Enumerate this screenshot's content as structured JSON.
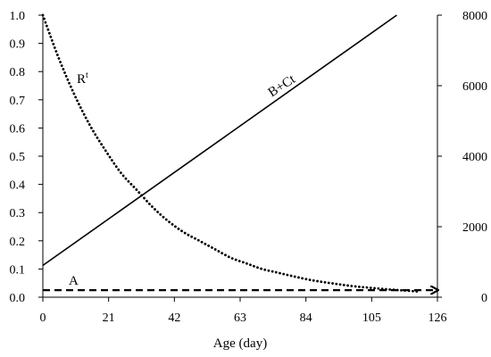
{
  "chart_data": {
    "type": "line",
    "xlabel": "Age (day)",
    "x_ticks": [
      "0",
      "21",
      "42",
      "63",
      "84",
      "105",
      "126"
    ],
    "xlim": [
      0,
      126
    ],
    "y_left_ticks": [
      "0.0",
      "0.1",
      "0.2",
      "0.3",
      "0.4",
      "0.5",
      "0.6",
      "0.7",
      "0.8",
      "0.9",
      "1.0"
    ],
    "ylim_left": [
      0,
      1
    ],
    "y_right_ticks": [
      "0",
      "2000",
      "4000",
      "6000",
      "8000"
    ],
    "ylim_right": [
      0,
      8000
    ],
    "grid": false,
    "series": [
      {
        "name": "R",
        "name_sup": "t",
        "axis": "left",
        "style": "dotted",
        "color": "#000000",
        "x": [
          0,
          5,
          10,
          15,
          20,
          25,
          30,
          35,
          40,
          45,
          50,
          55,
          60,
          65,
          70,
          75,
          80,
          85,
          90,
          95,
          100,
          105,
          110,
          115,
          120
        ],
        "y": [
          1.0,
          0.85,
          0.72,
          0.61,
          0.52,
          0.44,
          0.38,
          0.32,
          0.27,
          0.23,
          0.2,
          0.17,
          0.14,
          0.12,
          0.1,
          0.087,
          0.074,
          0.062,
          0.053,
          0.045,
          0.038,
          0.033,
          0.028,
          0.024,
          0.02
        ]
      },
      {
        "name": "B+Ct",
        "axis": "right",
        "style": "solid",
        "color": "#000000",
        "x": [
          0,
          113
        ],
        "y": [
          900,
          8000
        ]
      },
      {
        "name": "A",
        "axis": "left",
        "style": "dashed",
        "color": "#000000",
        "x": [
          0,
          126
        ],
        "y": [
          0.025,
          0.025
        ],
        "arrow_end": true
      }
    ]
  }
}
